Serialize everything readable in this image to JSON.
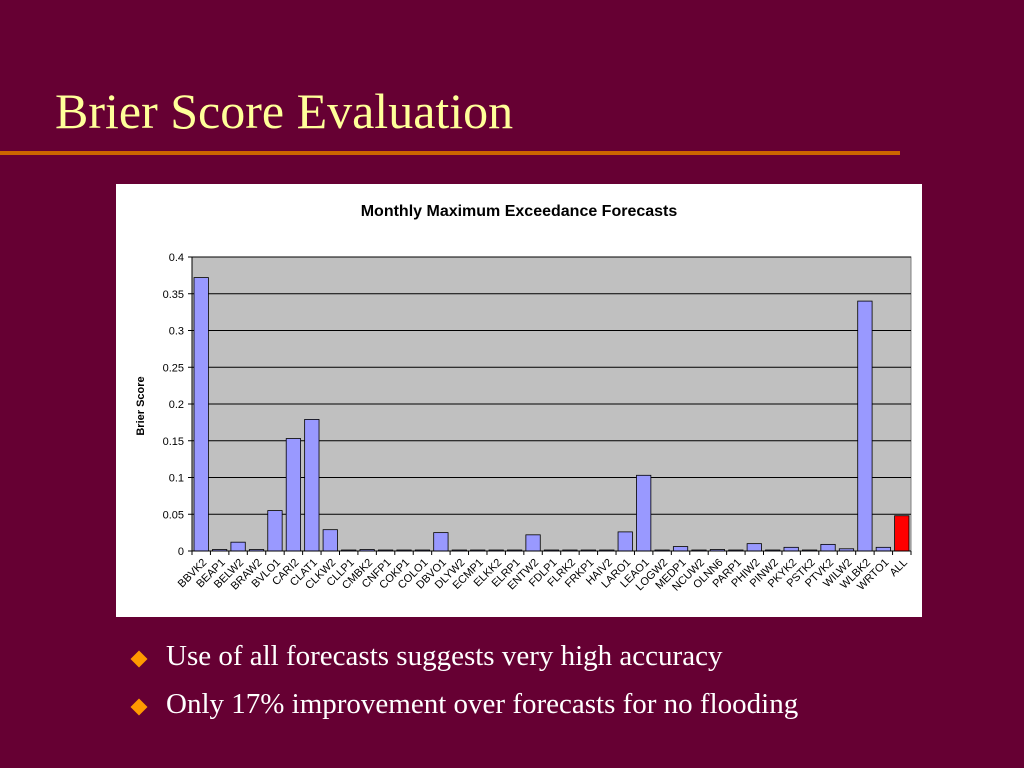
{
  "slide": {
    "title": "Brier Score Evaluation",
    "bullets": [
      "Use of all forecasts suggests very high accuracy",
      "Only 17% improvement over forecasts for no flooding"
    ]
  },
  "colors": {
    "background": "#660033",
    "title_text": "#ffff99",
    "rule": "#cc6600",
    "bullet_marker": "#ff9900",
    "bar_fill": "#9999ff",
    "highlight_bar_fill": "#ff0000",
    "plot_area": "#c0c0c0"
  },
  "chart_data": {
    "type": "bar",
    "title": "Monthly Maximum Exceedance Forecasts",
    "xlabel": "",
    "ylabel": "Brier Score",
    "ylim": [
      0,
      0.4
    ],
    "yticks": [
      "0",
      "0.05",
      "0.1",
      "0.15",
      "0.2",
      "0.25",
      "0.3",
      "0.35",
      "0.4"
    ],
    "grid": true,
    "highlight_category": "ALL",
    "categories": [
      "BBVK2",
      "BEAP1",
      "BELW2",
      "BRAW2",
      "BVLO1",
      "CARI2",
      "CLAT1",
      "CLKW2",
      "CLLP1",
      "CMBK2",
      "CNFP1",
      "COKP1",
      "COLO1",
      "DBVO1",
      "DLYW2",
      "ECMP1",
      "ELKK2",
      "ELRP1",
      "ENTW2",
      "FDLP1",
      "FLRK2",
      "FRKP1",
      "HAIV2",
      "LARO1",
      "LEAO1",
      "LOGW2",
      "MEDP1",
      "NCUW2",
      "OLNN6",
      "PARP1",
      "PHIW2",
      "PINW2",
      "PKYK2",
      "PSTK2",
      "PTVK2",
      "WILW2",
      "WLBK2",
      "WRTO1",
      "ALL"
    ],
    "values": [
      0.372,
      0.002,
      0.012,
      0.002,
      0.055,
      0.153,
      0.179,
      0.029,
      0.0,
      0.002,
      0.0,
      0.0,
      0.0,
      0.025,
      0.0,
      0.0,
      0.0,
      0.0,
      0.022,
      0.0,
      0.0,
      0.0,
      0.0,
      0.026,
      0.103,
      0.0,
      0.006,
      0.0,
      0.002,
      0.0,
      0.01,
      0.0,
      0.005,
      0.0,
      0.009,
      0.003,
      0.34,
      0.005,
      0.048
    ]
  }
}
